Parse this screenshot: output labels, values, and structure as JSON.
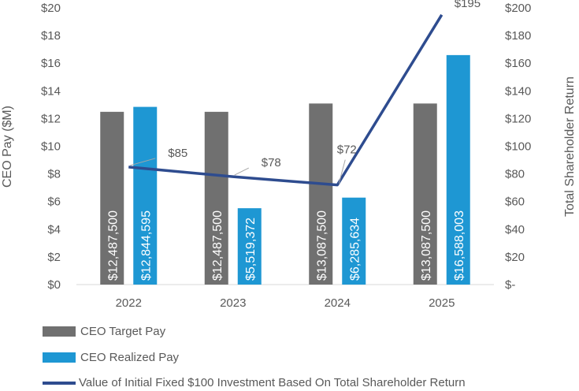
{
  "chart_data": {
    "type": "bar",
    "categories": [
      "2022",
      "2023",
      "2024",
      "2025"
    ],
    "series": [
      {
        "name": "CEO Target Pay",
        "kind": "bar",
        "axis": "left",
        "values": [
          12.4875,
          12.4875,
          13.0875,
          13.0875
        ],
        "labels": [
          "$12,487,500",
          "$12,487,500",
          "$13,087,500",
          "$13,087,500"
        ],
        "color": "#707070"
      },
      {
        "name": "CEO Realized Pay",
        "kind": "bar",
        "axis": "left",
        "values": [
          12.844595,
          5.519372,
          6.285634,
          16.588003
        ],
        "labels": [
          "$12,844,595",
          "$5,519,372",
          "$6,285,634",
          "$16,588,003"
        ],
        "color": "#1E97D3"
      },
      {
        "name": "Value of Initial Fixed $100 Investment Based On Total Shareholder Return",
        "kind": "line",
        "axis": "right",
        "values": [
          85,
          78,
          72,
          195
        ],
        "labels": [
          "$85",
          "$78",
          "$72",
          "$195"
        ],
        "color": "#2E4C8F"
      }
    ],
    "ylabel": "CEO Pay ($M)",
    "y2label": "Total Shareholder Return",
    "ylim": [
      0,
      20
    ],
    "y2lim": [
      0,
      200
    ],
    "yticks": [
      "$0",
      "$2",
      "$4",
      "$6",
      "$8",
      "$10",
      "$12",
      "$14",
      "$16",
      "$18",
      "$20"
    ],
    "y2ticks": [
      "$-",
      "$20",
      "$40",
      "$60",
      "$80",
      "$100",
      "$120",
      "$140",
      "$160",
      "$180",
      "$200"
    ],
    "grid": false,
    "legend_position": "bottom-left"
  }
}
